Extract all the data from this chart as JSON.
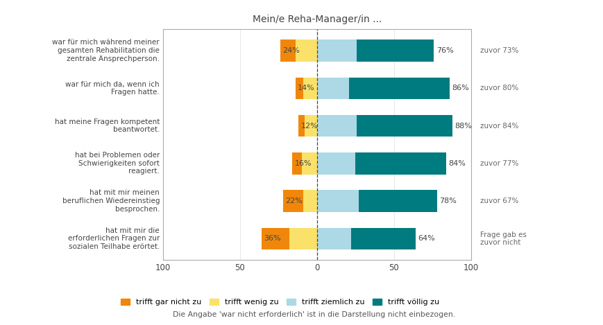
{
  "title": "Mein/e Reha-Manager/in ...",
  "categories": [
    "war für mich während meiner\ngesamten Rehabilitation die\nzentrale Ansprechperson.",
    "war für mich da, wenn ich\nFragen hatte.",
    "hat meine Fragen kompetent\nbeantwortet.",
    "hat bei Problemen oder\nSchwierigkeiten sofort\nreagiert.",
    "hat mit mir meinen\nberuflichen Wiedereinstieg\nbesprochen.",
    "hat mit mir die\nerf orderlichen Fragen zur\nsozialen Teilhabe erörtet."
  ],
  "neg_pct": [
    "24%",
    "14%",
    "12%",
    "16%",
    "22%",
    "36%"
  ],
  "pos_pct": [
    "76%",
    "86%",
    "88%",
    "84%",
    "78%",
    "64%"
  ],
  "prev_pct": [
    "zuvor 73%",
    "zuvor 80%",
    "zuvor 84%",
    "zuvor 77%",
    "zuvor 67%",
    "Frage gab es\nzuvor nicht"
  ],
  "gar_nicht": [
    10,
    5,
    4,
    6,
    13,
    18
  ],
  "wenig": [
    14,
    9,
    8,
    10,
    9,
    18
  ],
  "ziemlich": [
    26,
    21,
    26,
    25,
    27,
    22
  ],
  "voellig": [
    50,
    65,
    62,
    59,
    51,
    42
  ],
  "color_gar_nicht": "#F0870A",
  "color_wenig": "#FAE169",
  "color_ziemlich": "#ADD8E6",
  "color_voellig": "#007B7F",
  "legend_labels": [
    "trifft gar nicht zu",
    "trifft wenig zu",
    "trifft ziemlich zu",
    "trifft völlig zu"
  ],
  "footer": "Die Angabe 'war nicht erforderlich' ist in die Darstellung nicht einbezogen.",
  "xlim": [
    -100,
    100
  ],
  "xticks": [
    -100,
    -50,
    0,
    50,
    100
  ],
  "xticklabels": [
    "100",
    "50",
    "0",
    "50",
    "100"
  ],
  "background_color": "#FFFFFF",
  "grid_color": "#DDDDDD"
}
